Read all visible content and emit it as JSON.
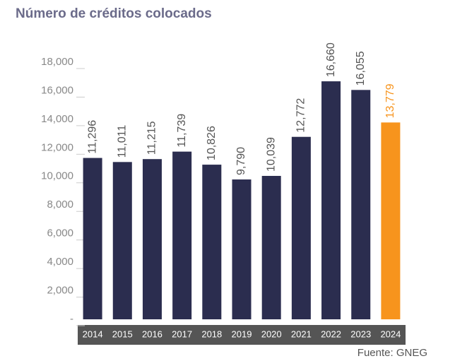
{
  "chart_data": {
    "type": "bar",
    "title": "Número de créditos colocados",
    "categories": [
      "2014",
      "2015",
      "2016",
      "2017",
      "2018",
      "2019",
      "2020",
      "2021",
      "2022",
      "2023",
      "2024"
    ],
    "values": [
      11296,
      11011,
      11215,
      11739,
      10826,
      9790,
      10039,
      12772,
      16660,
      16055,
      13779
    ],
    "value_labels": [
      "11,296",
      "11,011",
      "11,215",
      "11,739",
      "10,826",
      "9,790",
      "10,039",
      "12,772",
      "16,660",
      "16,055",
      "13,779"
    ],
    "colors": [
      "#2b2d4f",
      "#2b2d4f",
      "#2b2d4f",
      "#2b2d4f",
      "#2b2d4f",
      "#2b2d4f",
      "#2b2d4f",
      "#2b2d4f",
      "#2b2d4f",
      "#2b2d4f",
      "#f7941d"
    ],
    "value_label_colors": [
      "#555555",
      "#555555",
      "#555555",
      "#555555",
      "#555555",
      "#555555",
      "#555555",
      "#555555",
      "#555555",
      "#555555",
      "#f7941d"
    ],
    "ylim": [
      0,
      18000
    ],
    "yticks": [
      {
        "value": 0,
        "label": "-"
      },
      {
        "value": 2000,
        "label": "2,000"
      },
      {
        "value": 4000,
        "label": "4,000"
      },
      {
        "value": 6000,
        "label": "6,000"
      },
      {
        "value": 8000,
        "label": "8,000"
      },
      {
        "value": 10000,
        "label": "10,000"
      },
      {
        "value": 12000,
        "label": "12,000"
      },
      {
        "value": 14000,
        "label": "14,000"
      },
      {
        "value": 16000,
        "label": "16,000"
      },
      {
        "value": 18000,
        "label": "18,000"
      }
    ],
    "source": "Fuente: GNEG"
  }
}
